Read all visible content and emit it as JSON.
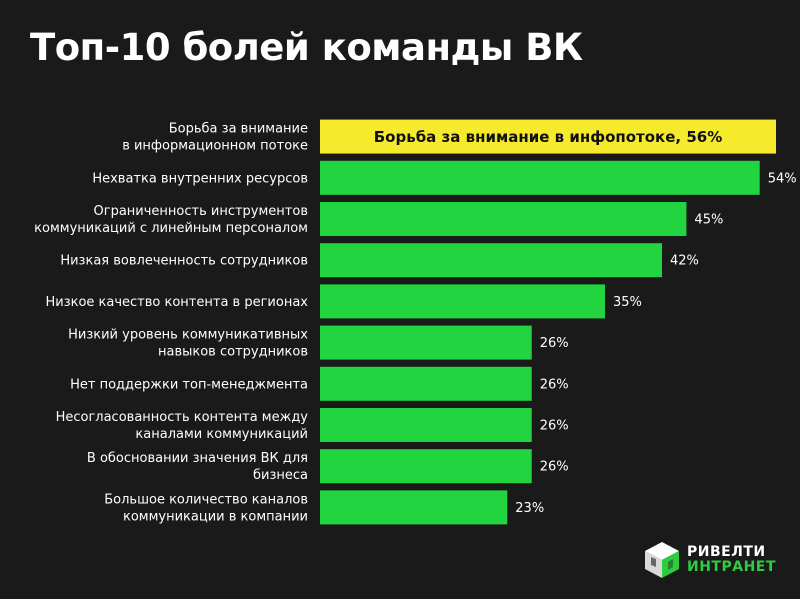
{
  "title": "Топ-10 болей команды ВК",
  "colors": {
    "background": "#1a1a1a",
    "bar": "#22d43f",
    "highlight": "#f6ea2c",
    "text": "#ffffff",
    "highlight_text": "#111111"
  },
  "chart_data": {
    "type": "bar",
    "orientation": "horizontal",
    "categories": [
      [
        "Борьба за внимание",
        "в информационном потоке"
      ],
      [
        "Нехватка внутренних ресурсов"
      ],
      [
        "Ограниченность инструментов",
        "коммуникаций с линейным персоналом"
      ],
      [
        "Низкая вовлеченность сотрудников"
      ],
      [
        "Низкое качество контента в регионах"
      ],
      [
        "Низкий уровень коммуникативных",
        "навыков сотрудников"
      ],
      [
        "Нет поддержки топ-менеджмента"
      ],
      [
        "Несогласованность контента между",
        "каналами коммуникаций"
      ],
      [
        "В обосновании значения ВК для",
        "бизнеса"
      ],
      [
        "Большое количество каналов",
        "коммуникации в компании"
      ]
    ],
    "values": [
      56,
      54,
      45,
      42,
      35,
      26,
      26,
      26,
      26,
      23
    ],
    "data_labels": [
      "Борьба за внимание в инфопотоке, 56%",
      "54%",
      "45%",
      "42%",
      "35%",
      "26%",
      "26%",
      "26%",
      "26%",
      "23%"
    ],
    "highlight_index": 0,
    "xlim": [
      0,
      56
    ],
    "grid": false,
    "legend": "none"
  },
  "logo": {
    "line1": "РИВЕЛТИ",
    "line2": "ИНТРАНЕТ",
    "icon": "cube-logo-icon"
  }
}
